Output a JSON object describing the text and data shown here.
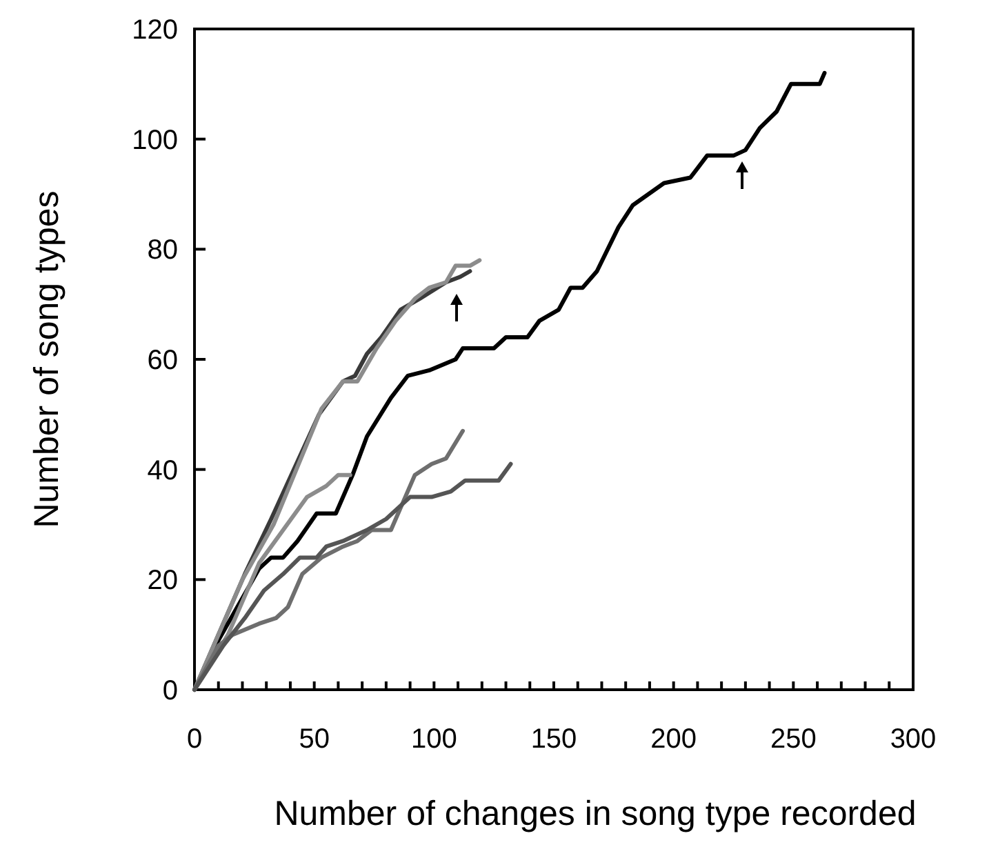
{
  "chart_data": {
    "type": "line",
    "xlabel": "Number of changes in song type recorded",
    "ylabel": "Number of song types",
    "xlim": [
      0,
      300
    ],
    "ylim": [
      0,
      120
    ],
    "xticks": [
      0,
      {
        "value": 10,
        "label": null
      },
      {
        "value": 20,
        "label": null
      },
      {
        "value": 30,
        "label": null
      },
      {
        "value": 40,
        "label": null
      },
      50,
      {
        "value": 60,
        "label": null
      },
      {
        "value": 70,
        "label": null
      },
      {
        "value": 80,
        "label": null
      },
      {
        "value": 90,
        "label": null
      },
      100,
      {
        "value": 110,
        "label": null
      },
      {
        "value": 120,
        "label": null
      },
      {
        "value": 130,
        "label": null
      },
      {
        "value": 140,
        "label": null
      },
      150,
      {
        "value": 160,
        "label": null
      },
      {
        "value": 170,
        "label": null
      },
      {
        "value": 180,
        "label": null
      },
      {
        "value": 190,
        "label": null
      },
      200,
      {
        "value": 210,
        "label": null
      },
      {
        "value": 220,
        "label": null
      },
      {
        "value": 230,
        "label": null
      },
      {
        "value": 240,
        "label": null
      },
      250,
      {
        "value": 260,
        "label": null
      },
      {
        "value": 270,
        "label": null
      },
      {
        "value": 280,
        "label": null
      },
      {
        "value": 290,
        "label": null
      },
      300
    ],
    "yticks": [
      0,
      20,
      40,
      60,
      80,
      100,
      120
    ],
    "grid": false,
    "marker": "none",
    "line_style": "solid",
    "series": [
      {
        "color": "#000000",
        "x": [
          0,
          10,
          27,
          32,
          37,
          43,
          51,
          59,
          66,
          72,
          82,
          89,
          98,
          109,
          112,
          125,
          130,
          139,
          144,
          152,
          157,
          162,
          168,
          177,
          183,
          196,
          207,
          214,
          225,
          230,
          236,
          243,
          249,
          261,
          263
        ],
        "values": [
          0,
          9,
          22,
          24,
          24,
          27,
          32,
          32,
          39,
          46,
          53,
          57,
          58,
          60,
          62,
          62,
          64,
          64,
          67,
          69,
          73,
          73,
          76,
          84,
          88,
          92,
          93,
          97,
          97,
          98,
          102,
          105,
          110,
          110,
          112
        ]
      },
      {
        "color": "#3a3a3a",
        "x": [
          0,
          21,
          32,
          52,
          62,
          67,
          72,
          78,
          86,
          94,
          105,
          111,
          115
        ],
        "values": [
          0,
          21,
          31,
          50,
          56,
          57,
          61,
          64,
          69,
          71,
          74,
          75,
          76
        ]
      },
      {
        "color": "#8c8c8c",
        "x": [
          0,
          20,
          33,
          53,
          62,
          68,
          76,
          84,
          92,
          98,
          105,
          109,
          115,
          119
        ],
        "values": [
          0,
          20,
          30,
          51,
          56,
          56,
          62,
          67,
          71,
          73,
          74,
          77,
          77,
          78
        ]
      },
      {
        "color": "#8c8c8c",
        "x": [
          0,
          14,
          27,
          37,
          47,
          55,
          60,
          65
        ],
        "values": [
          0,
          10,
          23,
          29,
          35,
          37,
          39,
          39
        ]
      },
      {
        "color": "#6e6e6e",
        "x": [
          0,
          10,
          16,
          27,
          34,
          39,
          45,
          53,
          62,
          68,
          74,
          82,
          88,
          92,
          99,
          105,
          112
        ],
        "values": [
          0,
          8,
          10,
          12,
          13,
          15,
          21,
          24,
          26,
          27,
          29,
          29,
          35,
          39,
          41,
          42,
          47
        ]
      },
      {
        "color": "#555555",
        "x": [
          0,
          12,
          21,
          29,
          37,
          44,
          51,
          55,
          62,
          72,
          80,
          90,
          99,
          107,
          113,
          127,
          132
        ],
        "values": [
          0,
          8,
          13,
          18,
          21,
          24,
          24,
          26,
          27,
          29,
          31,
          35,
          35,
          36,
          38,
          38,
          41
        ]
      }
    ]
  }
}
